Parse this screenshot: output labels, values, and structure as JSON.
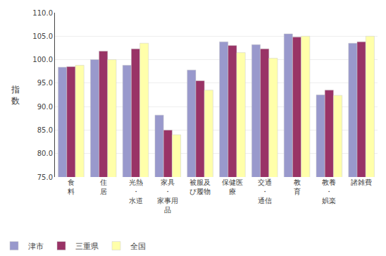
{
  "chart_data": {
    "type": "bar",
    "categories": [
      "食\n料",
      "住\n居",
      "光熱\n・\n水道",
      "家具\n・\n家事用\n品",
      "被服及\nび履物",
      "保健医\n療",
      "交通\n・\n通信",
      "教\n育",
      "教養\n・\n娯楽",
      "諸雑費"
    ],
    "series": [
      {
        "name": "津市",
        "color": "#9999cc",
        "values": [
          98.4,
          100.0,
          98.8,
          88.2,
          97.8,
          103.8,
          103.2,
          105.5,
          92.5,
          103.5
        ]
      },
      {
        "name": "三重県",
        "color": "#993366",
        "values": [
          98.5,
          101.8,
          102.3,
          85.0,
          95.5,
          103.0,
          102.3,
          104.8,
          93.5,
          103.8
        ]
      },
      {
        "name": "全国",
        "color": "#ffffaa",
        "values": [
          98.8,
          100.0,
          103.5,
          84.0,
          93.5,
          101.5,
          100.3,
          105.0,
          92.4,
          105.0
        ]
      }
    ],
    "ylabel": "指\n数",
    "ylim": [
      75.0,
      110.0
    ],
    "yticks": [
      {
        "value": 75.0,
        "label": "75.0"
      },
      {
        "value": 80.0,
        "label": "80.0"
      },
      {
        "value": 85.0,
        "label": "85.0"
      },
      {
        "value": 90.0,
        "label": "90.0"
      },
      {
        "value": 95.0,
        "label": "95.0"
      },
      {
        "value": 100.0,
        "label": "100.0"
      },
      {
        "value": 105.0,
        "label": "105.0"
      },
      {
        "value": 110.0,
        "label": "110.0"
      }
    ],
    "grid": true,
    "legend": "lower left"
  }
}
